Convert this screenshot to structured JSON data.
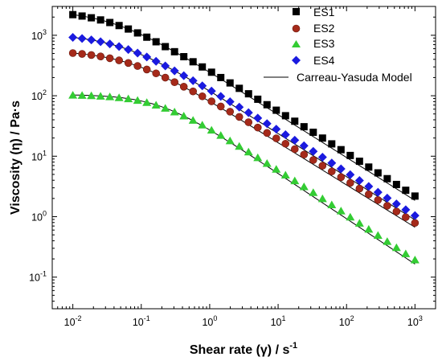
{
  "chart_data": {
    "type": "scatter",
    "xscale": "log",
    "yscale": "log",
    "xlim": [
      0.005,
      2000
    ],
    "ylim": [
      0.03,
      3000
    ],
    "xticks": [
      0.01,
      0.1,
      1,
      10,
      100,
      1000
    ],
    "xtick_labels": [
      {
        "base": "10",
        "exp": "-2"
      },
      {
        "base": "10",
        "exp": "-1"
      },
      {
        "base": "10",
        "exp": "0"
      },
      {
        "base": "10",
        "exp": "1"
      },
      {
        "base": "10",
        "exp": "2"
      },
      {
        "base": "10",
        "exp": "3"
      }
    ],
    "yticks": [
      0.1,
      1,
      10,
      100,
      1000
    ],
    "ytick_labels": [
      {
        "base": "10",
        "exp": "-1"
      },
      {
        "base": "10",
        "exp": "0"
      },
      {
        "base": "10",
        "exp": "1"
      },
      {
        "base": "10",
        "exp": "2"
      },
      {
        "base": "10",
        "exp": "3"
      }
    ],
    "xlabel": "Shear rate (γ) / s",
    "xlabel_sup": "-1",
    "ylabel": "Viscosity (η) / Pa·s",
    "legend_position": "top-right",
    "series": [
      {
        "name": "ES1",
        "marker": "square",
        "color": "#000000",
        "eta0": 2600,
        "lambda": 27,
        "n": 0.29,
        "a": 1.0,
        "points": 38
      },
      {
        "name": "ES2",
        "marker": "circle",
        "color": "#a52a1a",
        "eta0": 560,
        "lambda": 15,
        "n": 0.3,
        "a": 1.0,
        "points": 38
      },
      {
        "name": "ES3",
        "marker": "triangle",
        "color": "#33cc33",
        "eta0": 105,
        "lambda": 5.5,
        "n": 0.25,
        "a": 1.2,
        "points": 38
      },
      {
        "name": "ES4",
        "marker": "diamond",
        "color": "#1a1adf",
        "eta0": 1050,
        "lambda": 20,
        "n": 0.285,
        "a": 1.0,
        "points": 38
      }
    ],
    "model_line": {
      "name": "Carreau-Yasuda Model",
      "color": "#000000"
    }
  }
}
